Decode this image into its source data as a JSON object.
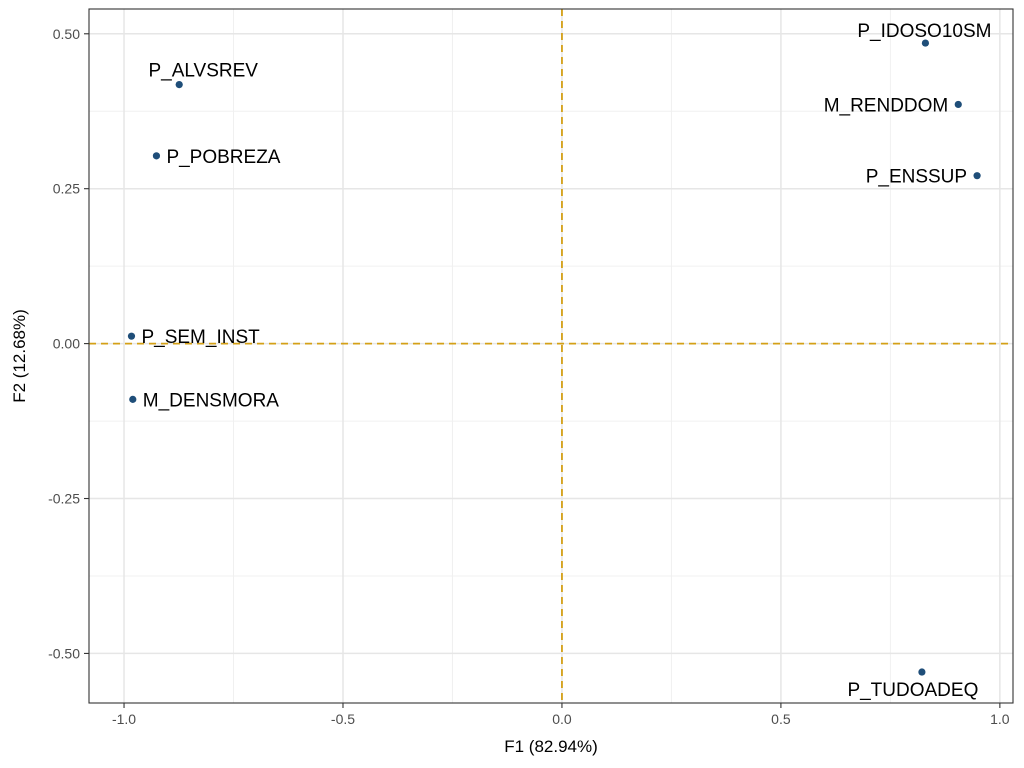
{
  "chart_data": {
    "type": "scatter",
    "title": "",
    "xlabel": "F1 (82.94%)",
    "ylabel": "F2 (12.68%)",
    "xlim": [
      -1.08,
      1.03
    ],
    "ylim": [
      -0.58,
      0.54
    ],
    "x_ticks": [
      -1.0,
      -0.5,
      0.0,
      0.5,
      1.0
    ],
    "x_tick_labels": [
      "-1.0",
      "-0.5",
      "0.0",
      "0.5",
      "1.0"
    ],
    "y_ticks": [
      -0.5,
      -0.25,
      0.0,
      0.25,
      0.5
    ],
    "y_tick_labels": [
      "-0.50",
      "-0.25",
      "0.00",
      "0.25",
      "0.50"
    ],
    "x_minor": [
      -0.75,
      -0.25,
      0.25,
      0.75
    ],
    "y_minor": [
      -0.375,
      -0.125,
      0.125,
      0.375
    ],
    "grid": true,
    "reference_lines": {
      "x": 0.0,
      "y": 0.0,
      "color": "#D4A017",
      "style": "dashed"
    },
    "point_color": "#1F4E79",
    "points": [
      {
        "label": "P_IDOSO10SM",
        "x": 0.83,
        "y": 0.485,
        "anchor": "middle",
        "dx": -1,
        "dy": -6
      },
      {
        "label": "M_RENDDOM",
        "x": 0.905,
        "y": 0.386,
        "anchor": "end",
        "dx": -10,
        "dy": 7
      },
      {
        "label": "P_ENSSUP",
        "x": 0.948,
        "y": 0.271,
        "anchor": "end",
        "dx": -10,
        "dy": 7
      },
      {
        "label": "P_ALVSREV",
        "x": -0.874,
        "y": 0.418,
        "anchor": "middle",
        "dx": 24,
        "dy": -8
      },
      {
        "label": "P_POBREZA",
        "x": -0.926,
        "y": 0.303,
        "anchor": "start",
        "dx": 10,
        "dy": 7
      },
      {
        "label": "P_SEM_INST",
        "x": -0.983,
        "y": 0.012,
        "anchor": "start",
        "dx": 10,
        "dy": 7
      },
      {
        "label": "M_DENSMORA",
        "x": -0.98,
        "y": -0.09,
        "anchor": "start",
        "dx": 10,
        "dy": 7
      },
      {
        "label": "P_TUDOADEQ",
        "x": 0.822,
        "y": -0.53,
        "anchor": "middle",
        "dx": -9,
        "dy": 24
      }
    ]
  }
}
